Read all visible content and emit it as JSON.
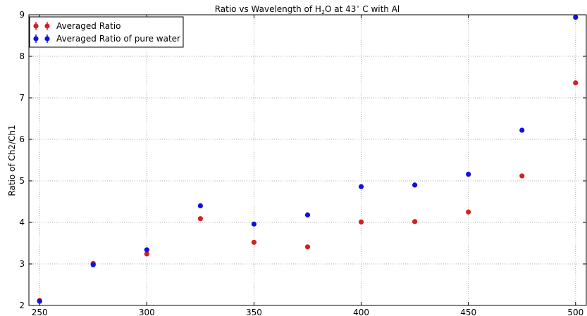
{
  "chart_data": {
    "type": "scatter",
    "title": {
      "prefix": "Ratio vs Wavelength of H",
      "subscript": "2",
      "middle": "O at 43",
      "superscript": "∘",
      "suffix": " C with Al"
    },
    "xlabel": "",
    "ylabel": "Ratio of Ch2/Ch1",
    "xlim": [
      245,
      505
    ],
    "ylim": [
      2,
      9
    ],
    "xticks": [
      250,
      300,
      350,
      400,
      450,
      500
    ],
    "yticks": [
      2,
      3,
      4,
      5,
      6,
      7,
      8,
      9
    ],
    "grid": true,
    "legend_position": "top-left",
    "x": [
      250,
      275,
      300,
      325,
      350,
      375,
      400,
      425,
      450,
      475,
      500
    ],
    "series": [
      {
        "name": "Averaged Ratio",
        "color": "#d62020",
        "values": [
          2.12,
          3.01,
          3.24,
          4.09,
          3.52,
          3.41,
          4.01,
          4.02,
          4.25,
          5.12,
          7.36
        ]
      },
      {
        "name": "Averaged Ratio of pure water",
        "color": "#1010e0",
        "values": [
          2.1,
          2.98,
          3.34,
          4.4,
          3.96,
          4.18,
          4.86,
          4.9,
          5.16,
          6.22,
          8.94
        ]
      }
    ]
  }
}
